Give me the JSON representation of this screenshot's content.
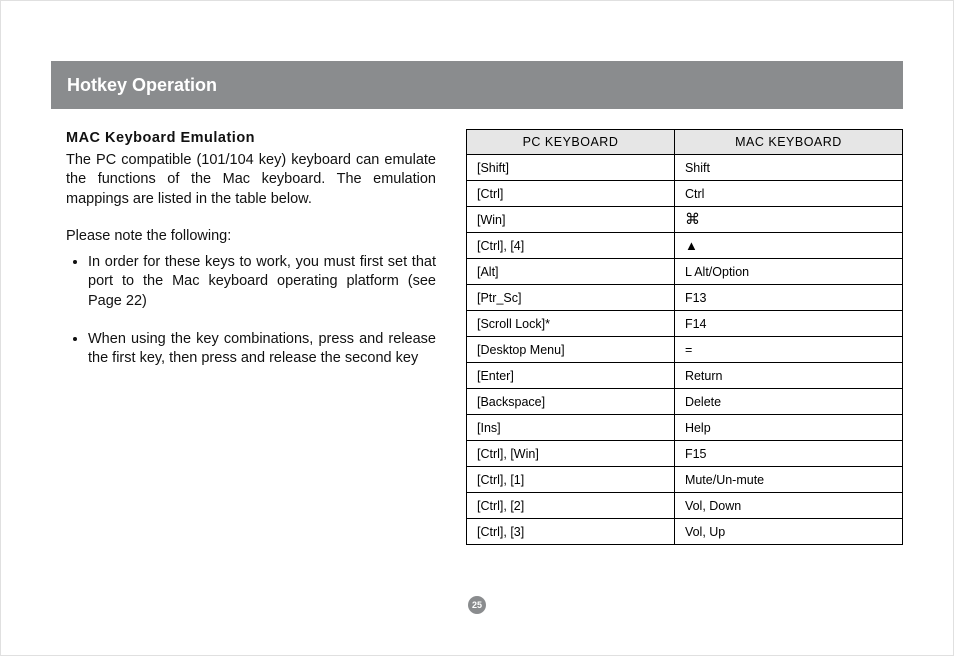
{
  "header": {
    "title": "Hotkey Operation"
  },
  "left": {
    "subtitle": "MAC Keyboard Emulation",
    "intro": "The PC compatible (101/104 key) keyboard can emulate the functions of the Mac keyboard. The emulation mappings are listed in the table below.",
    "note_intro": "Please note the following:",
    "notes": [
      "In order for these keys to work, you must first set that port to the Mac keyboard operating platform (see Page 22)",
      "When using the key combinations, press and release the first key, then press and release the second key"
    ]
  },
  "table": {
    "columns": [
      "PC KEYBOARD",
      "MAC KEYBOARD"
    ],
    "rows": [
      {
        "pc": "[Shift]",
        "mac": "Shift",
        "mac_icon": null
      },
      {
        "pc": "[Ctrl]",
        "mac": "Ctrl",
        "mac_icon": null
      },
      {
        "pc": "[Win]",
        "mac": "",
        "mac_icon": "cmd"
      },
      {
        "pc": "[Ctrl], [4]",
        "mac": "",
        "mac_icon": "eject"
      },
      {
        "pc": "[Alt]",
        "mac": "L Alt/Option",
        "mac_icon": null
      },
      {
        "pc": "[Ptr_Sc]",
        "mac": "F13",
        "mac_icon": null
      },
      {
        "pc": "[Scroll Lock]*",
        "mac": "F14",
        "mac_icon": null
      },
      {
        "pc": "[Desktop Menu]",
        "mac": "=",
        "mac_icon": null
      },
      {
        "pc": "[Enter]",
        "mac": "Return",
        "mac_icon": null
      },
      {
        "pc": "[Backspace]",
        "mac": "Delete",
        "mac_icon": null
      },
      {
        "pc": "[Ins]",
        "mac": "Help",
        "mac_icon": null
      },
      {
        "pc": "[Ctrl], [Win]",
        "mac": "F15",
        "mac_icon": null
      },
      {
        "pc": "[Ctrl], [1]",
        "mac": "Mute/Un-mute",
        "mac_icon": null
      },
      {
        "pc": "[Ctrl], [2]",
        "mac": "Vol, Down",
        "mac_icon": null
      },
      {
        "pc": "[Ctrl], [3]",
        "mac": "Vol, Up",
        "mac_icon": null
      }
    ],
    "header_bg": "#e6e6e6",
    "border_color": "#000000"
  },
  "page_number": "25",
  "colors": {
    "header_bg": "#8a8c8e",
    "header_text": "#ffffff",
    "body_text": "#000000",
    "page_bg": "#ffffff"
  },
  "icons": {
    "cmd": "⌘",
    "eject": "▲"
  }
}
